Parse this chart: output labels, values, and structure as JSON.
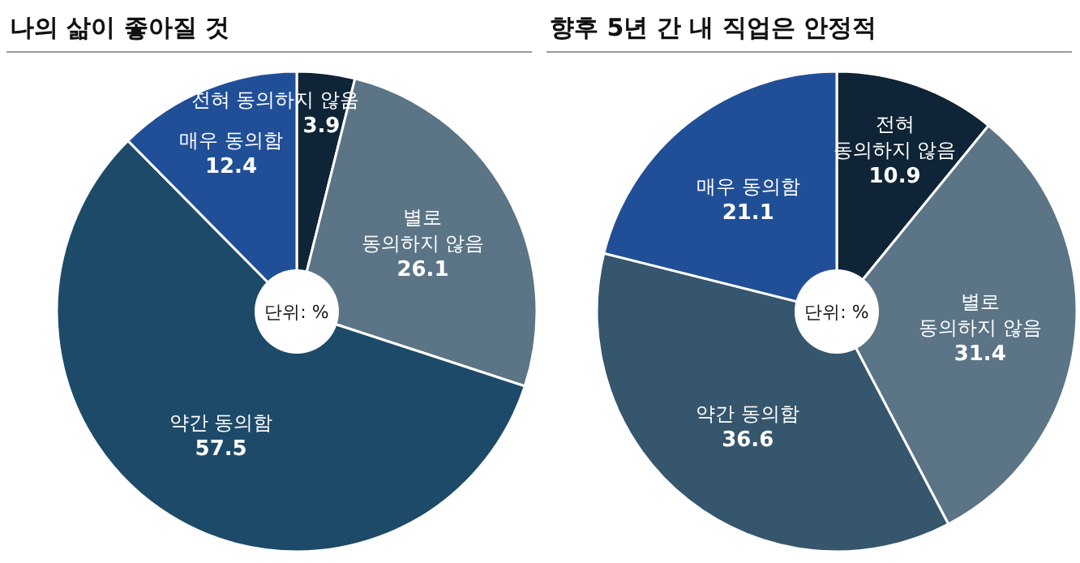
{
  "chart_data": [
    {
      "type": "pie",
      "title": "나의 삶이 좋아질 것",
      "categories": [
        "전혀 동의하지 않음",
        "별로 동의하지 않음",
        "약간 동의함",
        "매우 동의함"
      ],
      "values": [
        3.9,
        26.1,
        57.5,
        12.4
      ],
      "colors": [
        "#0f2436",
        "#5b7486",
        "#1d4a68",
        "#214f97"
      ],
      "data_labels": true,
      "annotations": [
        "단위: %"
      ]
    },
    {
      "type": "pie",
      "title": "향후 5년 간 내 직업은 안정적",
      "categories": [
        "전혀 동의하지 않음",
        "별로 동의하지 않음",
        "약간 동의함",
        "매우 동의함"
      ],
      "values": [
        10.9,
        31.4,
        36.6,
        21.1
      ],
      "colors": [
        "#0f2436",
        "#5b7486",
        "#36566e",
        "#214f97"
      ],
      "data_labels": true,
      "annotations": [
        "단위: %"
      ]
    }
  ]
}
